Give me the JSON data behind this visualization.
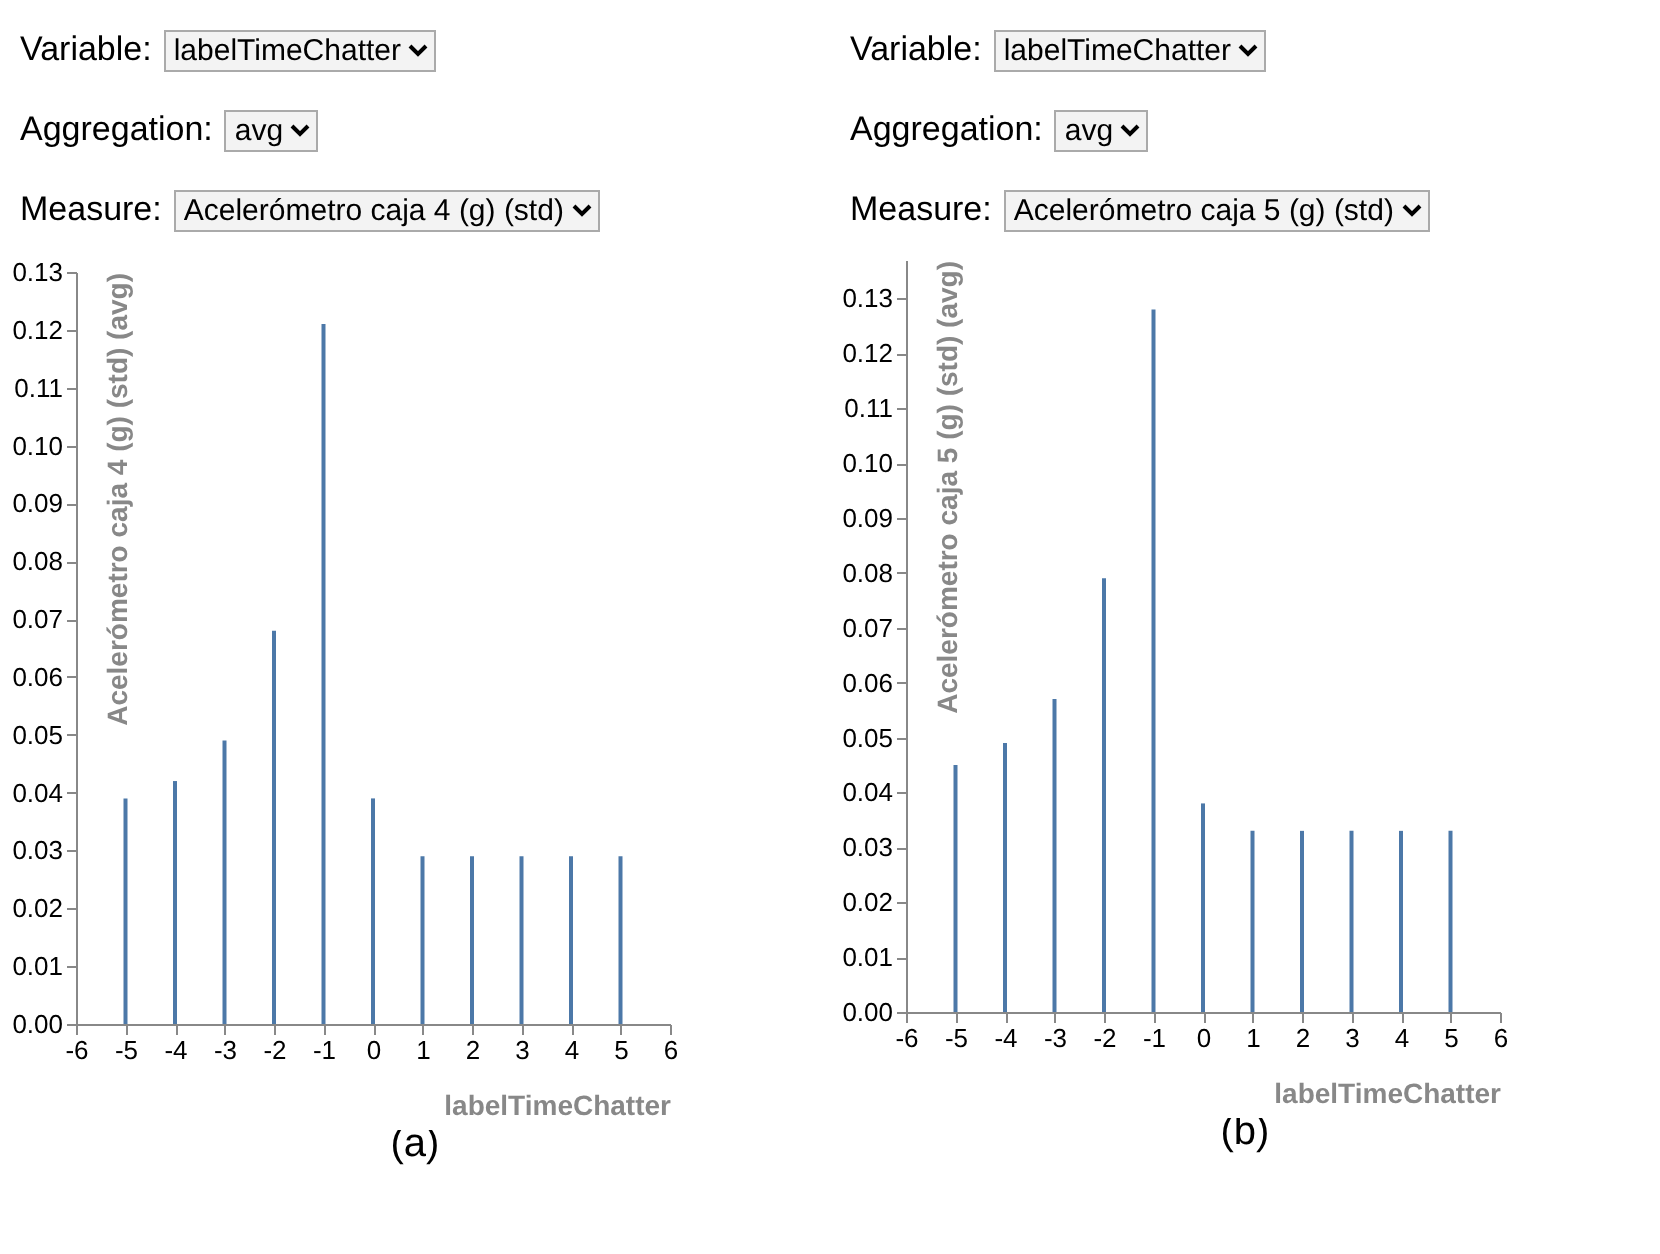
{
  "chart_data": [
    {
      "type": "bar",
      "xlabel": "labelTimeChatter",
      "ylabel": "Acelerómetro caja 4 (g) (std) (avg)",
      "x": [
        -5,
        -4,
        -3,
        -2,
        -1,
        0,
        1,
        2,
        3,
        4,
        5
      ],
      "series": [
        {
          "color": "#4c78a8",
          "values": [
            0.039,
            0.042,
            0.049,
            0.068,
            0.121,
            0.039,
            0.029,
            0.029,
            0.029,
            0.029,
            0.029
          ]
        }
      ],
      "xlim": [
        -6,
        6
      ],
      "xticks": [
        -6,
        -5,
        -4,
        -3,
        -2,
        -1,
        0,
        1,
        2,
        3,
        4,
        5,
        6
      ],
      "ylim": [
        0,
        0.13
      ],
      "yticks": [
        {
          "value": 0,
          "label": "0.00"
        },
        {
          "value": 0.01,
          "label": "0.01"
        },
        {
          "value": 0.02,
          "label": "0.02"
        },
        {
          "value": 0.03,
          "label": "0.03"
        },
        {
          "value": 0.04,
          "label": "0.04"
        },
        {
          "value": 0.05,
          "label": "0.05"
        },
        {
          "value": 0.06,
          "label": "0.06"
        },
        {
          "value": 0.07,
          "label": "0.07"
        },
        {
          "value": 0.08,
          "label": "0.08"
        },
        {
          "value": 0.09,
          "label": "0.09"
        },
        {
          "value": 0.1,
          "label": "0.10"
        },
        {
          "value": 0.11,
          "label": "0.11"
        },
        {
          "value": 0.12,
          "label": "0.12"
        },
        {
          "value": 0.13,
          "label": "0.13"
        }
      ],
      "annotations": [
        "Variable:",
        "labelTimeChatter",
        "Aggregation:",
        "avg",
        "Measure:",
        "Acelerómetro caja 4 (g) (std)",
        "(a)"
      ]
    },
    {
      "type": "bar",
      "xlabel": "labelTimeChatter",
      "ylabel": "Acelerómetro caja 5 (g) (std) (avg)",
      "x": [
        -5,
        -4,
        -3,
        -2,
        -1,
        0,
        1,
        2,
        3,
        4,
        5
      ],
      "series": [
        {
          "color": "#4c78a8",
          "values": [
            0.045,
            0.049,
            0.057,
            0.079,
            0.128,
            0.038,
            0.033,
            0.033,
            0.033,
            0.033,
            0.033
          ]
        }
      ],
      "xlim": [
        -6,
        6
      ],
      "xticks": [
        -6,
        -5,
        -4,
        -3,
        -2,
        -1,
        0,
        1,
        2,
        3,
        4,
        5,
        6
      ],
      "ylim": [
        0,
        0.137
      ],
      "yticks": [
        {
          "value": 0,
          "label": "0.00"
        },
        {
          "value": 0.01,
          "label": "0.01"
        },
        {
          "value": 0.02,
          "label": "0.02"
        },
        {
          "value": 0.03,
          "label": "0.03"
        },
        {
          "value": 0.04,
          "label": "0.04"
        },
        {
          "value": 0.05,
          "label": "0.05"
        },
        {
          "value": 0.06,
          "label": "0.06"
        },
        {
          "value": 0.07,
          "label": "0.07"
        },
        {
          "value": 0.08,
          "label": "0.08"
        },
        {
          "value": 0.09,
          "label": "0.09"
        },
        {
          "value": 0.1,
          "label": "0.10"
        },
        {
          "value": 0.11,
          "label": "0.11"
        },
        {
          "value": 0.12,
          "label": "0.12"
        },
        {
          "value": 0.13,
          "label": "0.13"
        }
      ],
      "annotations": [
        "Variable:",
        "labelTimeChatter",
        "Aggregation:",
        "avg",
        "Measure:",
        "Acelerómetro caja 5 (g) (std)",
        "(b)"
      ]
    }
  ]
}
